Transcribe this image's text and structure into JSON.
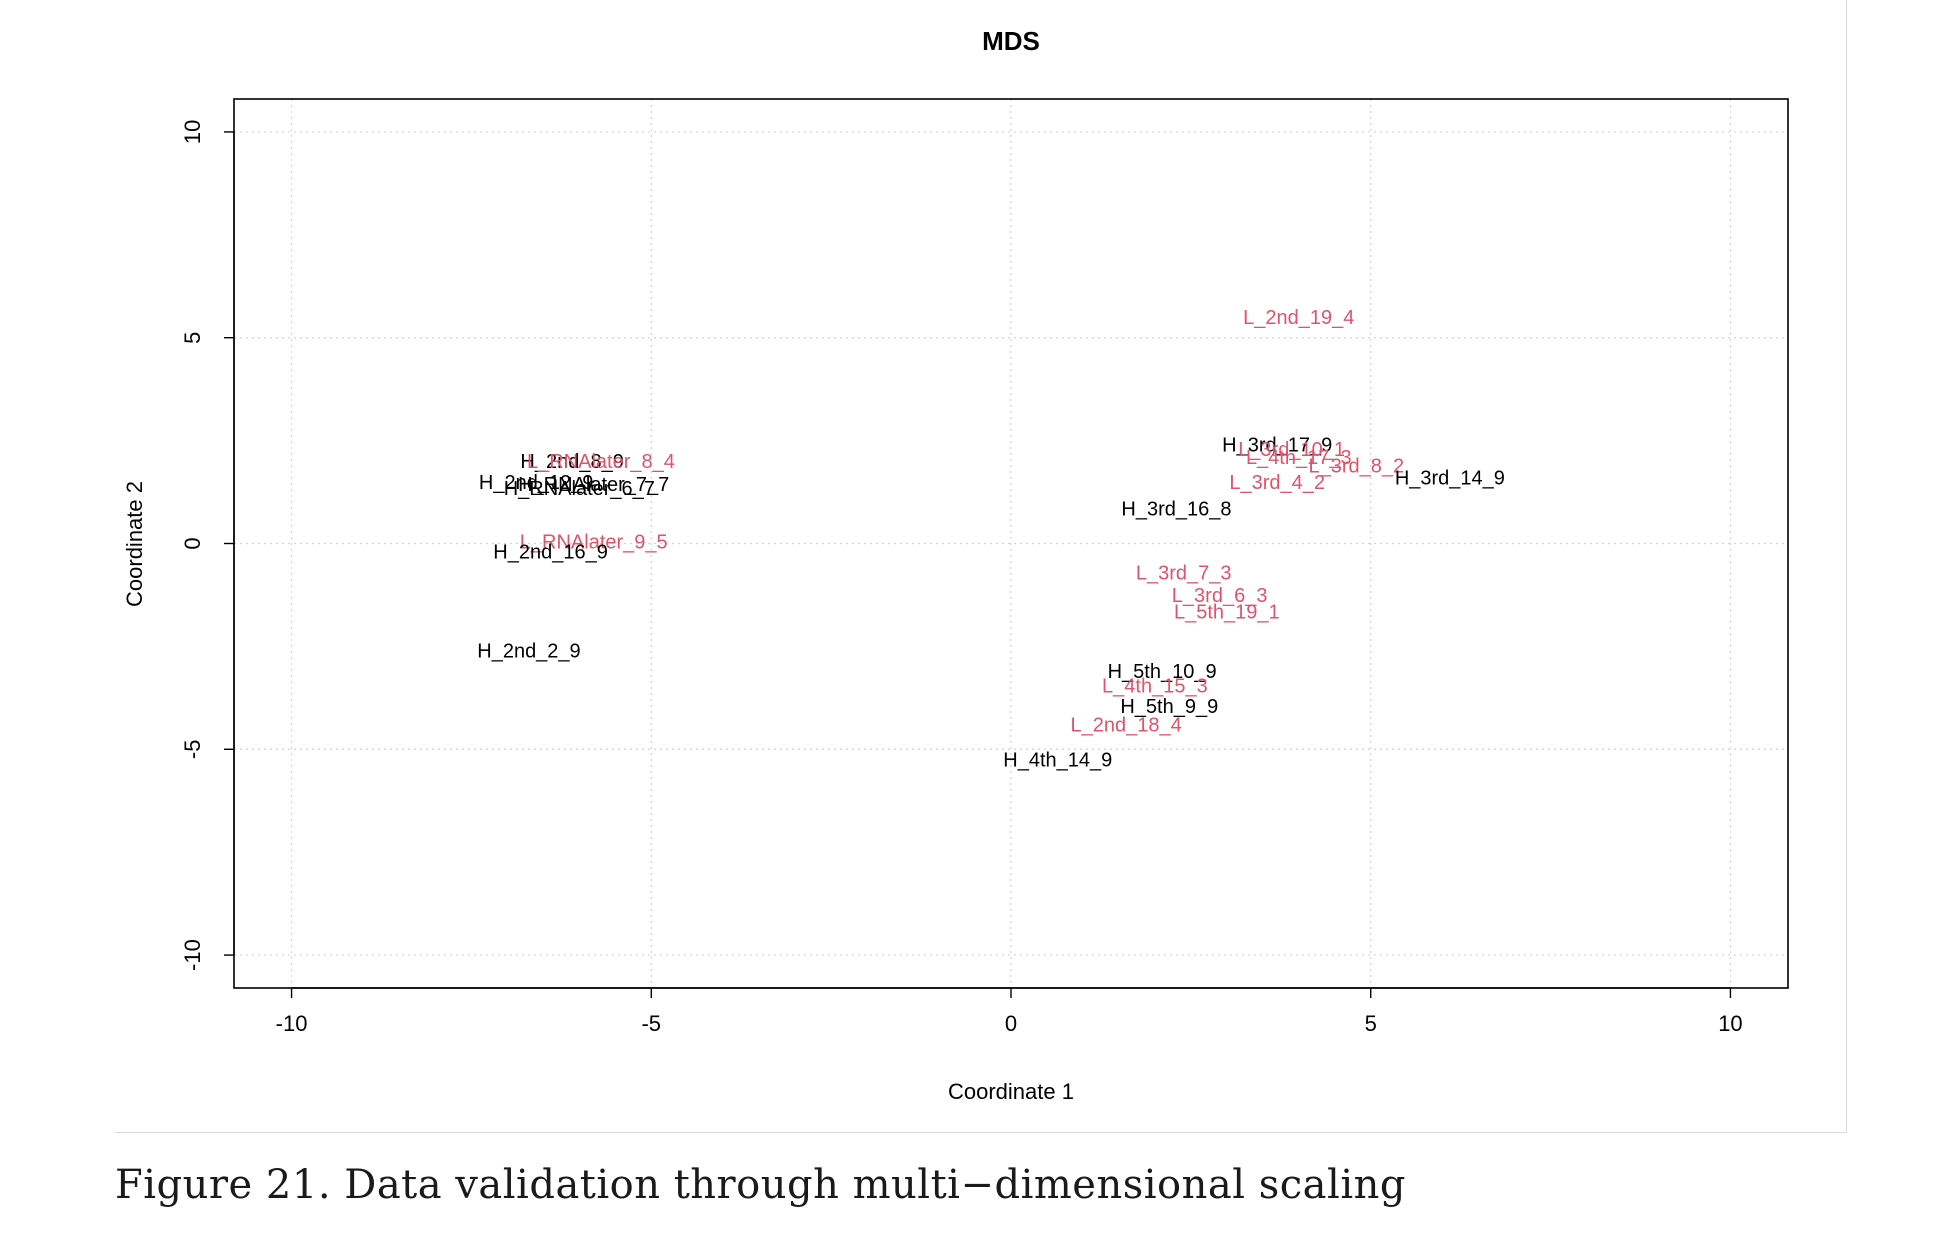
{
  "figure": {
    "caption": "Figure 21. Data validation through multi−dimensional scaling"
  },
  "colors": {
    "H": "#000000",
    "L": "#df536b",
    "grid": "#d3d3d3"
  },
  "chart_data": {
    "type": "scatter",
    "title": "MDS",
    "xlabel": "Coordinate 1",
    "ylabel": "Coordinate 2",
    "xlim": [
      -10.8,
      10.8
    ],
    "ylim": [
      -10.8,
      10.8
    ],
    "xticks": [
      -10,
      -5,
      0,
      5,
      10
    ],
    "yticks": [
      -10,
      -5,
      0,
      5,
      10
    ],
    "xtick_labels": [
      "-10",
      "-5",
      "0",
      "5",
      "10"
    ],
    "ytick_labels": [
      "-10",
      "-5",
      "0",
      "5",
      "10"
    ],
    "grid": true,
    "points": [
      {
        "label": "L_2nd_19_4",
        "x": 4.0,
        "y": 5.5,
        "group": "L"
      },
      {
        "label": "H_3rd_17_9",
        "x": 3.7,
        "y": 2.4,
        "group": "H"
      },
      {
        "label": "L_3rd_10_1",
        "x": 3.9,
        "y": 2.3,
        "group": "L"
      },
      {
        "label": "L_4th_17_3",
        "x": 4.0,
        "y": 2.1,
        "group": "L"
      },
      {
        "label": "L_3rd_8_2",
        "x": 4.8,
        "y": 1.9,
        "group": "L"
      },
      {
        "label": "L_3rd_4_2",
        "x": 3.7,
        "y": 1.5,
        "group": "L"
      },
      {
        "label": "H_3rd_14_9",
        "x": 6.1,
        "y": 1.6,
        "group": "H"
      },
      {
        "label": "H_3rd_16_8",
        "x": 2.3,
        "y": 0.85,
        "group": "H"
      },
      {
        "label": "H_2nd_8_9",
        "x": -6.1,
        "y": 2.0,
        "group": "H"
      },
      {
        "label": "L_RNAlater_8_4",
        "x": -5.7,
        "y": 2.0,
        "group": "L"
      },
      {
        "label": "H_2nd_12_9",
        "x": -6.6,
        "y": 1.5,
        "group": "H"
      },
      {
        "label": "H_RNAlater_7_7",
        "x": -5.8,
        "y": 1.45,
        "group": "H"
      },
      {
        "label": "H_RNAlater_6_7",
        "x": -6.0,
        "y": 1.35,
        "group": "H"
      },
      {
        "label": "L_RNAlater_9_5",
        "x": -5.8,
        "y": 0.05,
        "group": "L"
      },
      {
        "label": "H_2nd_16_9",
        "x": -6.4,
        "y": -0.2,
        "group": "H"
      },
      {
        "label": "H_2nd_2_9",
        "x": -6.7,
        "y": -2.6,
        "group": "H"
      },
      {
        "label": "L_3rd_7_3",
        "x": 2.4,
        "y": -0.7,
        "group": "L"
      },
      {
        "label": "L_3rd_6_3",
        "x": 2.9,
        "y": -1.25,
        "group": "L"
      },
      {
        "label": "L_5th_19_1",
        "x": 3.0,
        "y": -1.65,
        "group": "L"
      },
      {
        "label": "H_5th_10_9",
        "x": 2.1,
        "y": -3.1,
        "group": "H"
      },
      {
        "label": "L_4th_15_3",
        "x": 2.0,
        "y": -3.45,
        "group": "L"
      },
      {
        "label": "H_5th_9_9",
        "x": 2.2,
        "y": -3.95,
        "group": "H"
      },
      {
        "label": "L_2nd_18_4",
        "x": 1.6,
        "y": -4.4,
        "group": "L"
      },
      {
        "label": "H_4th_14_9",
        "x": 0.65,
        "y": -5.25,
        "group": "H"
      }
    ]
  }
}
